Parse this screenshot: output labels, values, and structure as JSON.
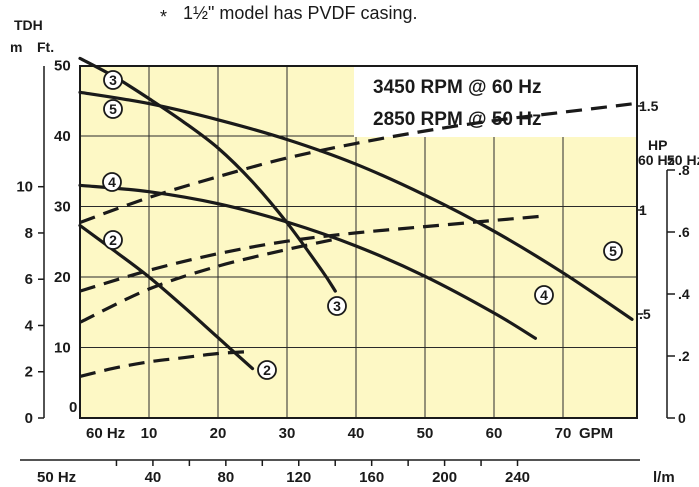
{
  "chart_data": {
    "type": "line",
    "note_marker": "*",
    "note": "1½\" model has PVDF casing.",
    "speeds": [
      "3450 RPM @ 60 Hz",
      "2850 RPM @ 50 Hz"
    ],
    "tdh_label": "TDH",
    "unit_m": "m",
    "unit_ft": "Ft.",
    "hp_label": "HP",
    "hz60_label": "60 Hz",
    "hz50_label": "50 Hz",
    "gpm_label": "60 Hz",
    "gpm_unit": "GPM",
    "lpm_label": "50 Hz",
    "lpm_unit": "l/m",
    "ft_ticks": [
      0,
      10,
      20,
      30,
      40,
      50
    ],
    "m_ticks": [
      0,
      2,
      4,
      6,
      8,
      10
    ],
    "gpm_ticks": [
      10,
      20,
      30,
      40,
      50,
      60,
      70
    ],
    "lpm_ticks": [
      40,
      80,
      120,
      160,
      200,
      240
    ],
    "hp60_ticks": [
      ".5",
      "1",
      "1.5"
    ],
    "hp50_ticks": [
      "0",
      ".2",
      ".4",
      ".6",
      ".8"
    ],
    "xlim": [
      0,
      80
    ],
    "ylim_ft": [
      0,
      50
    ],
    "head_series": [
      {
        "name": "3",
        "x": [
          0,
          5,
          10,
          15,
          20,
          25,
          30,
          35,
          37
        ],
        "y": [
          51,
          48.4,
          45.3,
          42,
          38.3,
          33.5,
          27.7,
          21,
          18
        ]
      },
      {
        "name": "5",
        "x": [
          0,
          10,
          20,
          30,
          40,
          50,
          60,
          70,
          80
        ],
        "y": [
          46.2,
          44.6,
          42.3,
          39.5,
          36,
          31.6,
          26.5,
          20.6,
          14
        ]
      },
      {
        "name": "4",
        "x": [
          0,
          10,
          20,
          30,
          40,
          50,
          60,
          66
        ],
        "y": [
          33,
          32.1,
          30.4,
          27.8,
          24.4,
          20.1,
          14.9,
          11.3
        ]
      },
      {
        "name": "2",
        "x": [
          0,
          5,
          10,
          15,
          20,
          25
        ],
        "y": [
          27.3,
          23.7,
          20,
          15.8,
          11.4,
          7
        ]
      }
    ],
    "hp_series": [
      {
        "name": "5",
        "x": [
          0,
          10,
          20,
          30,
          40,
          50,
          60,
          70,
          80
        ],
        "y": [
          0.94,
          1.06,
          1.16,
          1.25,
          1.32,
          1.38,
          1.43,
          1.47,
          1.51
        ]
      },
      {
        "name": "4",
        "x": [
          0,
          10,
          20,
          30,
          40,
          50,
          60,
          67
        ],
        "y": [
          0.61,
          0.71,
          0.79,
          0.85,
          0.89,
          0.92,
          0.95,
          0.97
        ]
      },
      {
        "name": "3",
        "x": [
          0,
          10,
          20,
          30,
          37
        ],
        "y": [
          0.46,
          0.62,
          0.73,
          0.81,
          0.86
        ]
      },
      {
        "name": "2",
        "x": [
          0,
          5,
          10,
          15,
          20,
          25
        ],
        "y": [
          0.2,
          0.24,
          0.27,
          0.29,
          0.31,
          0.32
        ]
      }
    ]
  }
}
